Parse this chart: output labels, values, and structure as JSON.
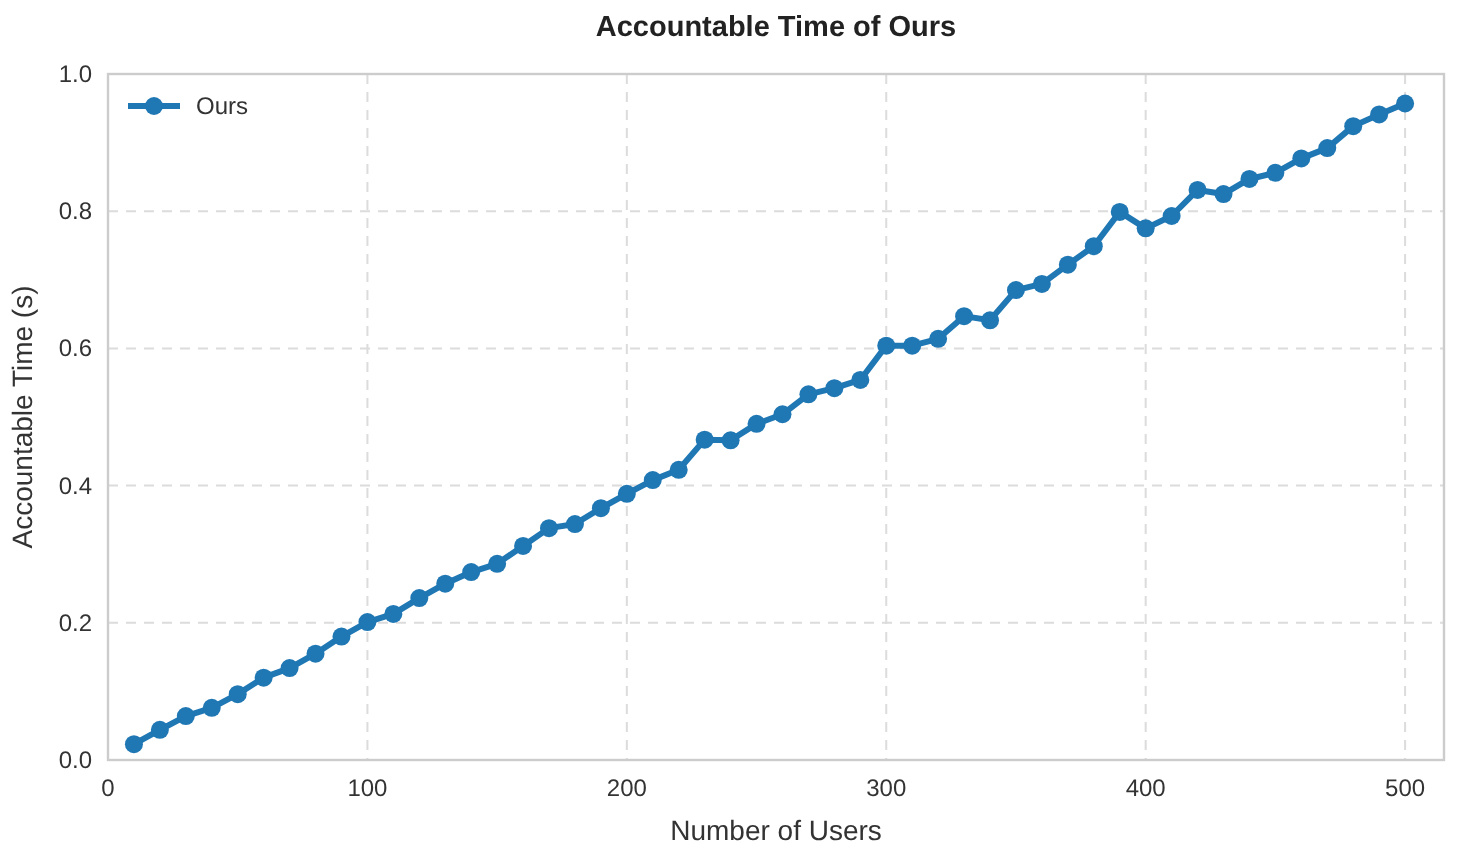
{
  "chart_data": {
    "type": "line",
    "title": "Accountable Time of Ours",
    "xlabel": "Number of Users",
    "ylabel": "Accountable Time (s)",
    "x": [
      10,
      20,
      30,
      40,
      50,
      60,
      70,
      80,
      90,
      100,
      110,
      120,
      130,
      140,
      150,
      160,
      170,
      180,
      190,
      200,
      210,
      220,
      230,
      240,
      250,
      260,
      270,
      280,
      290,
      300,
      310,
      320,
      330,
      340,
      350,
      360,
      370,
      380,
      390,
      400,
      410,
      420,
      430,
      440,
      450,
      460,
      470,
      480,
      490,
      500
    ],
    "series": [
      {
        "name": "Ours",
        "color": "#1f77b4",
        "values": [
          0.023,
          0.044,
          0.064,
          0.076,
          0.096,
          0.12,
          0.134,
          0.155,
          0.18,
          0.201,
          0.213,
          0.236,
          0.257,
          0.274,
          0.286,
          0.312,
          0.338,
          0.344,
          0.367,
          0.388,
          0.408,
          0.423,
          0.467,
          0.466,
          0.49,
          0.504,
          0.533,
          0.542,
          0.554,
          0.604,
          0.604,
          0.614,
          0.647,
          0.641,
          0.685,
          0.694,
          0.722,
          0.749,
          0.799,
          0.775,
          0.793,
          0.831,
          0.825,
          0.847,
          0.856,
          0.877,
          0.892,
          0.924,
          0.941,
          0.957
        ]
      }
    ],
    "xlim": [
      0,
      515
    ],
    "xticks": [
      0,
      100,
      200,
      300,
      400,
      500
    ],
    "ylim": [
      0,
      1
    ],
    "yticks": [
      {
        "value": 0,
        "label": "0.0"
      },
      {
        "value": 0.2,
        "label": "0.2"
      },
      {
        "value": 0.4,
        "label": "0.4"
      },
      {
        "value": 0.6,
        "label": "0.6"
      },
      {
        "value": 0.8,
        "label": "0.8"
      },
      {
        "value": 1,
        "label": "1.0"
      }
    ],
    "grid": true,
    "legend": "top left",
    "marker": "circle",
    "line_style": "solid"
  }
}
